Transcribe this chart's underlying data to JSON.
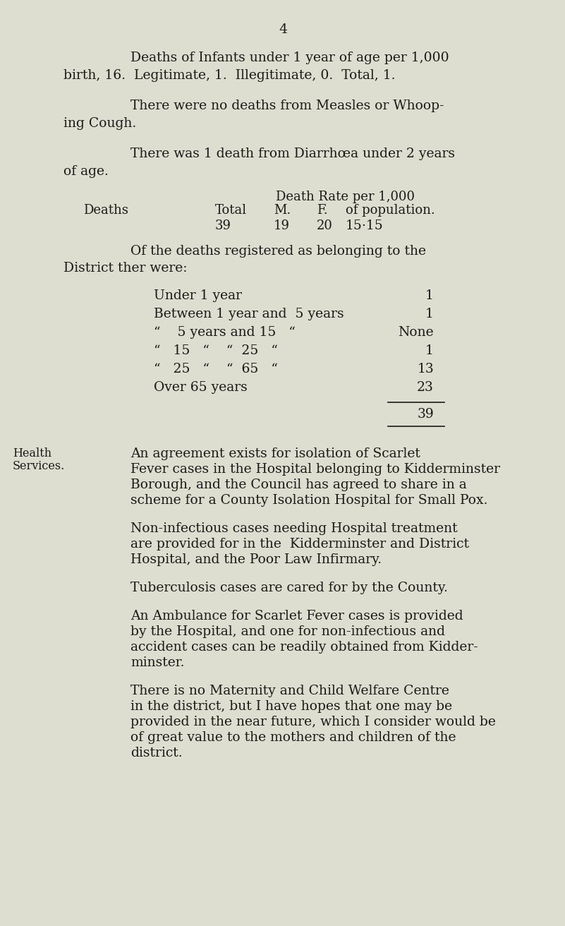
{
  "bg_color": "#deded0",
  "text_color": "#1a1a18",
  "page_number": "4",
  "para1_line1": "Deaths of Infants under 1 year of age per 1,000",
  "para1_line2": "birth, 16.  Legitimate, 1.  Illegitimate, 0.  Total, 1.",
  "para2_line1": "There were no deaths from Measles or Whoop-",
  "para2_line2": "ing Cough.",
  "para3_line1": "There was 1 death from Diarrhœa under 2 years",
  "para3_line2": "of age.",
  "table_header1": "Death Rate per 1,000",
  "table_col_deaths": "Deaths",
  "table_col_total": "Total",
  "table_col_m": "M.",
  "table_col_f": "F.",
  "table_col_pop": "of population.",
  "table_val_total": "39",
  "table_val_m": "19",
  "table_val_f": "20",
  "table_val_rate": "15·15",
  "para4_line1": "Of the deaths registered as belonging to the",
  "para4_line2": "District ther were:",
  "age_label1": "Under 1 year",
  "age_val1": "1",
  "age_label2": "Between 1 year and  5 years",
  "age_val2": "1",
  "age_label3": "“    5 years and 15   “",
  "age_val3": "None",
  "age_label4": "“   15   “    “  25   “",
  "age_val4": "1",
  "age_label5": "“   25   “    “  65   “",
  "age_val5": "13",
  "age_label6": "Over 65 years",
  "age_val6": "23",
  "total_val": "39",
  "health_label_line1": "Health",
  "health_label_line2": "Services.",
  "hp1l1": "An agreement exists for isolation of Scarlet",
  "hp1l2": "Fever cases in the Hospital belonging to Kidderminster",
  "hp1l3": "Borough, and the Council has agreed to share in a",
  "hp1l4": "scheme for a County Isolation Hospital for Small Pox.",
  "hp2l1": "Non-infectious cases needing Hospital treatment",
  "hp2l2": "are provided for in the  Kidderminster and District",
  "hp2l3": "Hospital, and the Poor Law Infirmary.",
  "hp3l1": "Tuberculosis cases are cared for by the County.",
  "hp4l1": "An Ambulance for Scarlet Fever cases is provided",
  "hp4l2": "by the Hospital, and one for non-infectious and",
  "hp4l3": "accident cases can be readily obtained from Kidder-",
  "hp4l4": "minster.",
  "hp5l1": "There is no Maternity and Child Welfare Centre",
  "hp5l2": "in the district, but I have hopes that one may be",
  "hp5l3": "provided in the near future, which I consider would be",
  "hp5l4": "of great value to the mothers and children of the",
  "hp5l5": "district."
}
